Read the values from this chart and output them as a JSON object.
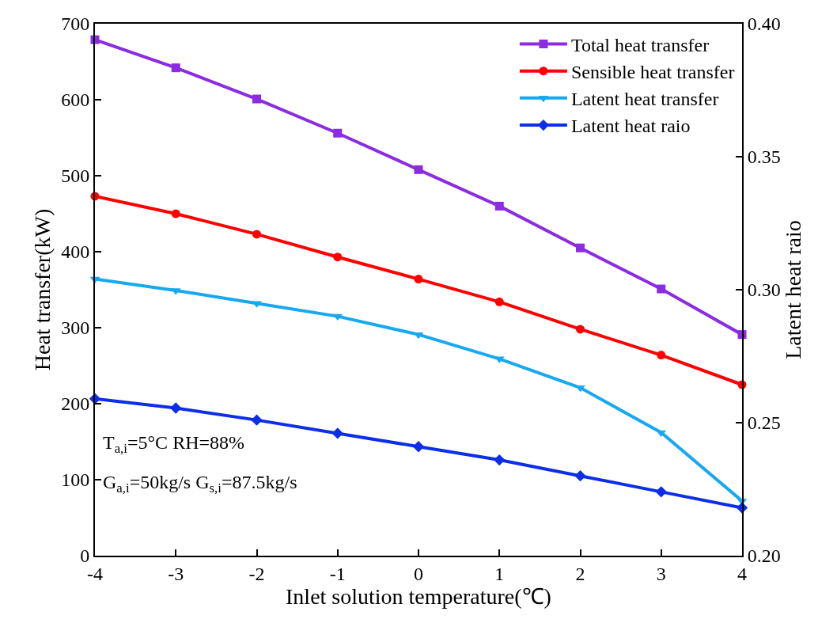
{
  "chart_data": {
    "type": "line",
    "xlabel": "Inlet solution temperature(℃)",
    "ylabel": "Heat transfer(kW)",
    "y2label": "Latent heat raio",
    "x": [
      -4,
      -3,
      -2,
      -1,
      0,
      1,
      2,
      3,
      4
    ],
    "series": [
      {
        "name": "Total heat transfer",
        "color": "#8b2be2",
        "marker": "square",
        "values": [
          679,
          642,
          601,
          556,
          508,
          460,
          405,
          351,
          291
        ]
      },
      {
        "name": "Sensible heat transfer",
        "color": "#ff0000",
        "marker": "circle",
        "values": [
          473,
          450,
          423,
          393,
          364,
          334,
          298,
          264,
          225
        ]
      },
      {
        "name": "Latent heat transfer",
        "color": "#17a9f0",
        "marker": "triangle",
        "values": [
          364,
          349,
          332,
          315,
          291,
          259,
          221,
          162,
          72
        ]
      },
      {
        "name": "Latent heat raio",
        "color": "#0d2ee8",
        "marker": "diamond",
        "axis": "y2",
        "values": [
          0.259,
          0.2555,
          0.251,
          0.246,
          0.241,
          0.236,
          0.23,
          0.224,
          0.218
        ]
      }
    ],
    "xlim": [
      -4,
      4
    ],
    "xticks": [
      -4,
      -3,
      -2,
      -1,
      0,
      1,
      2,
      3,
      4
    ],
    "ylim": [
      0,
      700
    ],
    "yticks": [
      0,
      100,
      200,
      300,
      400,
      500,
      600,
      700
    ],
    "y2lim": [
      0.2,
      0.4
    ],
    "y2ticks": [
      {
        "value": 0.2,
        "label": "0.20"
      },
      {
        "value": 0.25,
        "label": "0.25"
      },
      {
        "value": 0.3,
        "label": "0.30"
      },
      {
        "value": 0.35,
        "label": "0.35"
      },
      {
        "value": 0.4,
        "label": "0.40"
      }
    ],
    "annotations": [
      "T$_{a,i}$=5°C RH=88%",
      "G$_{a,i}$=50kg/s G$_{s,i}$=87.5kg/s"
    ],
    "legend": "top right",
    "line_style": "solid"
  }
}
